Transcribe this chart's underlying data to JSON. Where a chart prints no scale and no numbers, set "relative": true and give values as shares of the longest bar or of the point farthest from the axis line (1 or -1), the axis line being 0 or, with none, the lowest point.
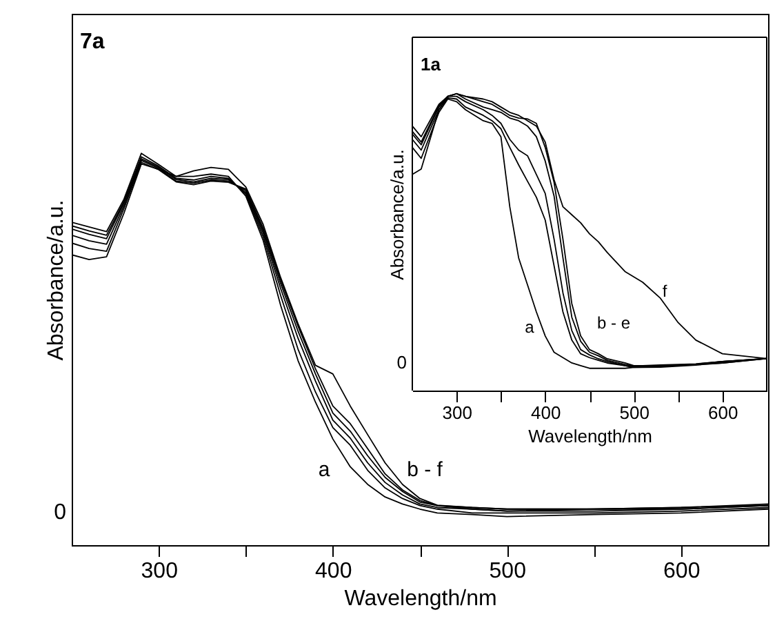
{
  "chart_data": [
    {
      "type": "line",
      "title": "7a",
      "xlabel": "Wavelength/nm",
      "ylabel": "Absorbance/a.u.",
      "relative": true,
      "x": [
        250,
        260,
        270,
        280,
        290,
        300,
        310,
        320,
        330,
        340,
        350,
        360,
        370,
        380,
        390,
        400,
        410,
        420,
        430,
        440,
        450,
        460,
        480,
        500,
        550,
        600,
        650
      ],
      "xlim": [
        250,
        650
      ],
      "xticks": [
        300,
        {
          "value": 350,
          "label": null
        },
        400,
        {
          "value": 450,
          "label": null
        },
        500,
        {
          "value": 550,
          "label": null
        },
        600
      ],
      "series": [
        {
          "color": "#000000",
          "values": [
            0.824,
            0.812,
            0.8,
            0.883,
            1.0,
            0.971,
            0.941,
            0.941,
            0.947,
            0.941,
            0.891,
            0.777,
            0.612,
            0.471,
            0.365,
            0.271,
            0.2,
            0.155,
            0.123,
            0.105,
            0.092,
            0.082,
            0.078,
            0.073,
            0.078,
            0.082,
            0.092
          ]
        },
        {
          "color": "#000000",
          "values": [
            0.815,
            0.802,
            0.791,
            0.877,
            0.991,
            0.967,
            0.936,
            0.932,
            0.941,
            0.936,
            0.896,
            0.787,
            0.637,
            0.5,
            0.391,
            0.3,
            0.255,
            0.191,
            0.146,
            0.119,
            0.101,
            0.092,
            0.082,
            0.082,
            0.082,
            0.087,
            0.096
          ]
        },
        {
          "color": "#000000",
          "values": [
            0.807,
            0.793,
            0.782,
            0.873,
            0.986,
            0.964,
            0.933,
            0.927,
            0.936,
            0.933,
            0.9,
            0.796,
            0.655,
            0.528,
            0.419,
            0.319,
            0.273,
            0.21,
            0.16,
            0.128,
            0.105,
            0.096,
            0.092,
            0.087,
            0.087,
            0.092,
            0.101
          ]
        },
        {
          "color": "#000000",
          "values": [
            0.791,
            0.777,
            0.768,
            0.866,
            0.982,
            0.961,
            0.929,
            0.924,
            0.932,
            0.929,
            0.905,
            0.803,
            0.668,
            0.546,
            0.437,
            0.337,
            0.291,
            0.228,
            0.173,
            0.137,
            0.11,
            0.101,
            0.092,
            0.087,
            0.092,
            0.092,
            0.101
          ]
        },
        {
          "color": "#000000",
          "values": [
            0.771,
            0.757,
            0.75,
            0.859,
            0.977,
            0.958,
            0.927,
            0.92,
            0.929,
            0.926,
            0.909,
            0.809,
            0.677,
            0.559,
            0.45,
            0.355,
            0.31,
            0.246,
            0.182,
            0.141,
            0.114,
            0.101,
            0.096,
            0.092,
            0.092,
            0.096,
            0.102
          ]
        },
        {
          "color": "#000000",
          "values": [
            0.741,
            0.729,
            0.736,
            0.847,
            0.973,
            0.959,
            0.941,
            0.955,
            0.964,
            0.959,
            0.914,
            0.818,
            0.683,
            0.565,
            0.459,
            0.437,
            0.355,
            0.282,
            0.21,
            0.155,
            0.119,
            0.102,
            0.096,
            0.092,
            0.092,
            0.096,
            0.105
          ]
        }
      ],
      "annotations": [
        "0",
        "a",
        "b - f"
      ]
    },
    {
      "type": "line",
      "title": "1a",
      "xlabel": "Wavelength/nm",
      "ylabel": "Absorbance/a.u.",
      "relative": true,
      "x": [
        250,
        260,
        280,
        290,
        300,
        310,
        330,
        340,
        350,
        360,
        370,
        380,
        390,
        400,
        410,
        420,
        430,
        440,
        450,
        460,
        470,
        490,
        500,
        510,
        530,
        550,
        570,
        600,
        650
      ],
      "xlim": [
        250,
        650
      ],
      "xticks": [
        300,
        {
          "value": 350,
          "label": null
        },
        400,
        {
          "value": 450,
          "label": null
        },
        500,
        {
          "value": 550,
          "label": null
        },
        600
      ],
      "series": [
        {
          "color": "#000000",
          "values": [
            0.819,
            0.782,
            0.937,
            0.982,
            0.973,
            0.946,
            0.909,
            0.9,
            0.855,
            0.619,
            0.447,
            0.356,
            0.265,
            0.184,
            0.129,
            0.111,
            0.093,
            0.084,
            0.075,
            0.075,
            0.075,
            0.075,
            0.078,
            0.079,
            0.082,
            0.084,
            0.088,
            0.093,
            0.108
          ]
        },
        {
          "color": "#000000",
          "values": [
            0.846,
            0.81,
            0.946,
            0.986,
            0.982,
            0.955,
            0.927,
            0.909,
            0.882,
            0.819,
            0.76,
            0.705,
            0.651,
            0.574,
            0.42,
            0.265,
            0.17,
            0.124,
            0.111,
            0.102,
            0.093,
            0.084,
            0.078,
            0.078,
            0.079,
            0.082,
            0.086,
            0.093,
            0.108
          ]
        },
        {
          "color": "#000000",
          "values": [
            0.864,
            0.828,
            0.955,
            0.991,
            0.991,
            0.973,
            0.946,
            0.927,
            0.9,
            0.846,
            0.81,
            0.791,
            0.728,
            0.664,
            0.51,
            0.329,
            0.202,
            0.138,
            0.12,
            0.107,
            0.098,
            0.084,
            0.079,
            0.079,
            0.082,
            0.084,
            0.088,
            0.098,
            0.108
          ]
        },
        {
          "color": "#000000",
          "values": [
            0.873,
            0.837,
            0.959,
            0.991,
            1.0,
            0.982,
            0.955,
            0.946,
            0.937,
            0.918,
            0.909,
            0.891,
            0.855,
            0.773,
            0.655,
            0.447,
            0.247,
            0.166,
            0.129,
            0.117,
            0.102,
            0.088,
            0.082,
            0.082,
            0.084,
            0.086,
            0.089,
            0.098,
            0.108
          ]
        },
        {
          "color": "#000000",
          "values": [
            0.891,
            0.855,
            0.964,
            0.991,
            1.0,
            0.991,
            0.973,
            0.964,
            0.946,
            0.927,
            0.918,
            0.915,
            0.9,
            0.819,
            0.701,
            0.51,
            0.293,
            0.184,
            0.138,
            0.124,
            0.107,
            0.093,
            0.084,
            0.084,
            0.086,
            0.088,
            0.09,
            0.098,
            0.108
          ]
        },
        {
          "color": "#000000",
          "values": [
            0.728,
            0.746,
            0.946,
            0.991,
            1.0,
            0.991,
            0.982,
            0.973,
            0.955,
            0.937,
            0.927,
            0.909,
            0.891,
            0.837,
            0.71,
            0.619,
            0.592,
            0.565,
            0.528,
            0.501,
            0.465,
            0.401,
            0.383,
            0.365,
            0.311,
            0.229,
            0.17,
            0.124,
            0.108
          ]
        }
      ],
      "annotations": [
        "0",
        "a",
        "b - e",
        "f"
      ]
    }
  ]
}
